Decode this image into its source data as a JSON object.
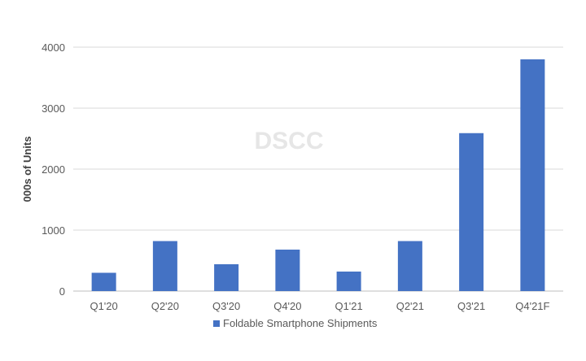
{
  "chart_data": {
    "type": "bar",
    "categories": [
      "Q1'20",
      "Q2'20",
      "Q3'20",
      "Q4'20",
      "Q1'21",
      "Q2'21",
      "Q3'21",
      "Q4'21F"
    ],
    "series": [
      {
        "name": "Foldable Smartphone Shipments",
        "values": [
          300,
          820,
          440,
          680,
          320,
          820,
          2590,
          3800
        ],
        "color": "#4472C4"
      }
    ],
    "ylabel": "000s of Units",
    "xlabel": "",
    "ylim": [
      0,
      4000
    ],
    "yticks": [
      0,
      1000,
      2000,
      3000,
      4000
    ],
    "grid": true,
    "legend_position": "bottom",
    "watermark": "DSCC"
  }
}
